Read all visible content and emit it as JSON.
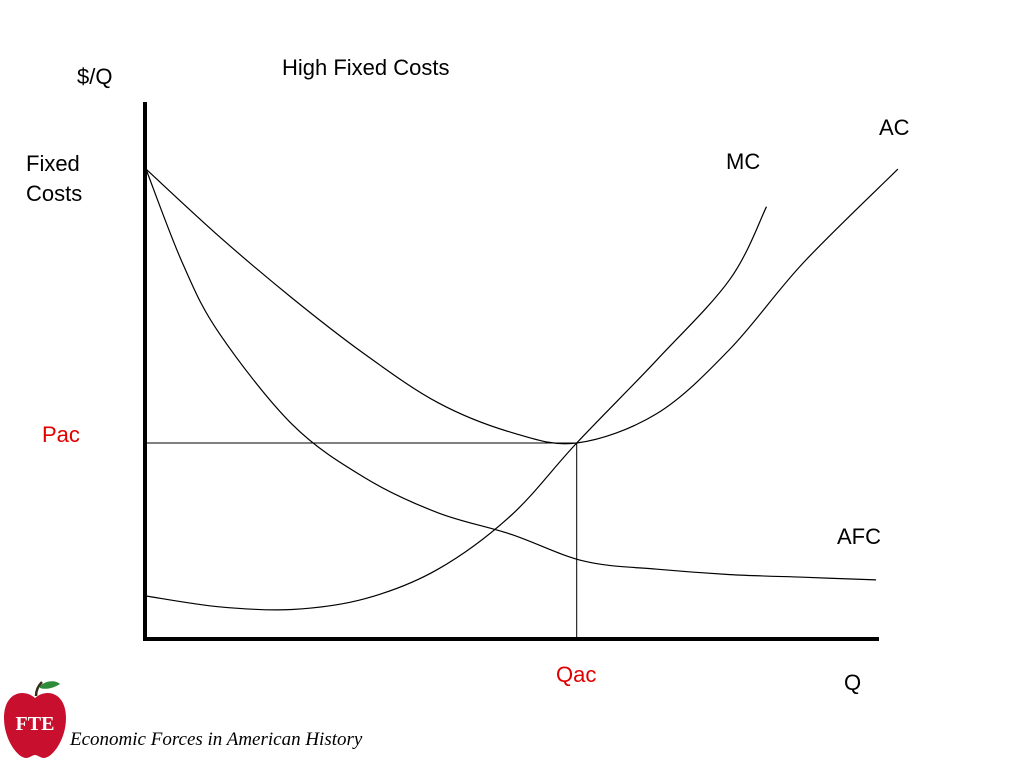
{
  "colors": {
    "axis": "#000000",
    "curve": "#000000",
    "highlight": "#e00000",
    "apple": "#c8102e",
    "leaf": "#2e8b3a"
  },
  "chart_data": {
    "type": "line",
    "title": "High Fixed Costs",
    "ylabel": "$/Q",
    "xlabel": "Q",
    "xlim": [
      0,
      10
    ],
    "ylim": [
      0,
      10
    ],
    "y_annotations": {
      "fixed_costs": [
        "Fixed",
        "Costs"
      ],
      "pac": "Pac"
    },
    "x_annotations": {
      "qac": "Qac"
    },
    "reference_point": {
      "x": 5.9,
      "y": 3.65,
      "x_label": "Qac",
      "y_label": "Pac"
    },
    "series": [
      {
        "name": "AC",
        "x": [
          0,
          1,
          2,
          3,
          4,
          5,
          5.9,
          7,
          8,
          9,
          10.3
        ],
        "y": [
          8.75,
          7.5,
          6.35,
          5.3,
          4.4,
          3.85,
          3.65,
          4.2,
          5.4,
          7.0,
          8.75
        ]
      },
      {
        "name": "MC",
        "x": [
          0,
          1,
          2,
          3,
          4,
          5,
          5.9,
          7,
          8,
          8.5
        ],
        "y": [
          0.8,
          0.6,
          0.55,
          0.75,
          1.3,
          2.3,
          3.65,
          5.2,
          6.7,
          8.05
        ]
      },
      {
        "name": "AFC",
        "x": [
          0,
          0.5,
          1,
          2,
          3,
          4,
          5,
          6,
          7,
          8,
          9,
          10
        ],
        "y": [
          8.75,
          7.0,
          5.7,
          4.0,
          3.0,
          2.35,
          1.95,
          1.45,
          1.3,
          1.2,
          1.15,
          1.1
        ]
      }
    ]
  },
  "footer": {
    "logo_text": "FTE",
    "caption": "Economic Forces in American History"
  }
}
